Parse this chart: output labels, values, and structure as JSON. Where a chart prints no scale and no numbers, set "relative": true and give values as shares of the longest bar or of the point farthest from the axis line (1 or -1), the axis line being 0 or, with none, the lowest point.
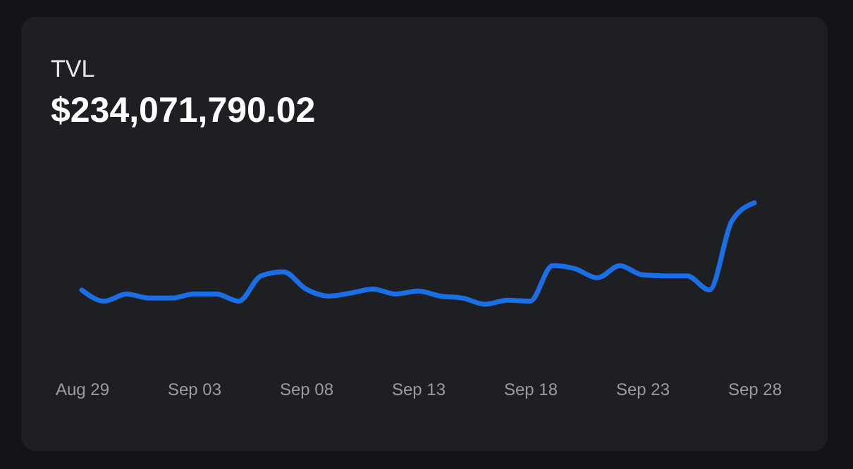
{
  "chart_data": {
    "type": "line",
    "title": "TVL",
    "subtitle": "$234,071,790.02",
    "x": [
      "--08-29",
      "--08-30",
      "--08-31",
      "--09-01",
      "--09-02",
      "--09-03",
      "--09-04",
      "--09-05",
      "--09-06",
      "--09-07",
      "--09-08",
      "--09-09",
      "--09-10",
      "--09-11",
      "--09-12",
      "--09-13",
      "--09-14",
      "--09-15",
      "--09-16",
      "--09-17",
      "--09-18",
      "--09-19",
      "--09-20",
      "--09-21",
      "--09-22",
      "--09-23",
      "--09-24",
      "--09-25",
      "--09-26",
      "--09-27",
      "--09-28"
    ],
    "values": [
      0.14,
      0.03,
      0.1,
      0.06,
      0.06,
      0.1,
      0.1,
      0.03,
      0.28,
      0.32,
      0.15,
      0.08,
      0.11,
      0.15,
      0.1,
      0.13,
      0.08,
      0.06,
      0,
      0.04,
      0.03,
      0.38,
      0.35,
      0.26,
      0.38,
      0.29,
      0.28,
      0.28,
      0.14,
      0.82,
      1
    ],
    "color": "#1b6ee3",
    "relative": true,
    "grid": false,
    "xlim": [
      "--08-29",
      "--09-28"
    ],
    "xticks": [
      {
        "value": "--08-29",
        "label": "Aug 29"
      },
      {
        "value": "--09-03",
        "label": "Sep 03"
      },
      {
        "value": "--09-08",
        "label": "Sep 08"
      },
      {
        "value": "--09-13",
        "label": "Sep 13"
      },
      {
        "value": "--09-18",
        "label": "Sep 18"
      },
      {
        "value": "--09-23",
        "label": "Sep 23"
      },
      {
        "value": "--09-28",
        "label": "Sep 28"
      }
    ]
  }
}
